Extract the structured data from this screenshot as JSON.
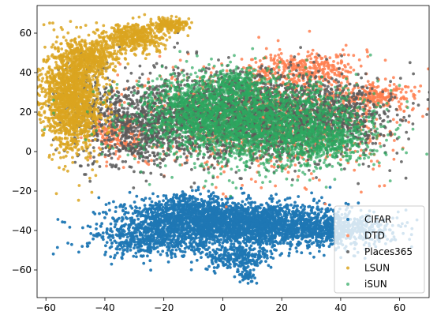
{
  "chart_data": {
    "type": "scatter",
    "xlim": [
      -63,
      70
    ],
    "ylim": [
      -74,
      74
    ],
    "xticks": [
      -60,
      -40,
      -20,
      0,
      20,
      40,
      60
    ],
    "yticks": [
      -60,
      -40,
      -20,
      0,
      20,
      40,
      60
    ],
    "xtick_labels": [
      "−60",
      "−40",
      "−20",
      "0",
      "20",
      "40",
      "60"
    ],
    "ytick_labels": [
      "−60",
      "−40",
      "−20",
      "0",
      "20",
      "40",
      "60"
    ],
    "grid": false,
    "legend_position": "lower-right",
    "series": [
      {
        "name": "CIFAR",
        "color": "#1f77b4",
        "alpha": 0.95,
        "clusters": [
          {
            "cx": 5,
            "cy": -37,
            "sx": 19,
            "sy": 5.5,
            "n": 2600
          },
          {
            "cx": -12,
            "cy": -30,
            "sx": 10,
            "sy": 4,
            "n": 500
          },
          {
            "cx": 38,
            "cy": -40,
            "sx": 10,
            "sy": 4,
            "n": 500
          },
          {
            "cx": -25,
            "cy": -46,
            "sx": 9,
            "sy": 4,
            "n": 350
          },
          {
            "cx": 5,
            "cy": -54,
            "sx": 6,
            "sy": 3,
            "n": 250
          },
          {
            "cx": 8,
            "cy": -63,
            "sx": 1.5,
            "sy": 1.5,
            "n": 40
          }
        ]
      },
      {
        "name": "DTD",
        "color": "#ff7f50",
        "alpha": 0.85,
        "clusters": [
          {
            "cx": 15,
            "cy": 18,
            "sx": 20,
            "sy": 13,
            "n": 1300
          },
          {
            "cx": 52,
            "cy": 28,
            "sx": 7,
            "sy": 3,
            "n": 200
          },
          {
            "cx": 28,
            "cy": 42,
            "sx": 9,
            "sy": 4,
            "n": 300
          },
          {
            "cx": -35,
            "cy": 8,
            "sx": 5,
            "sy": 6,
            "n": 200
          }
        ]
      },
      {
        "name": "Places365",
        "color": "#5a5a5a",
        "alpha": 0.85,
        "clusters": [
          {
            "cx": 8,
            "cy": 18,
            "sx": 20,
            "sy": 11,
            "n": 2200
          },
          {
            "cx": -28,
            "cy": 12,
            "sx": 7,
            "sy": 10,
            "n": 500
          },
          {
            "cx": -45,
            "cy": 22,
            "sx": 5,
            "sy": 12,
            "n": 250
          },
          {
            "cx": 40,
            "cy": 18,
            "sx": 9,
            "sy": 8,
            "n": 350
          }
        ]
      },
      {
        "name": "LSUN",
        "color": "#daa520",
        "alpha": 0.85,
        "clusters": [
          {
            "cx": -51,
            "cy": 27,
            "sx": 5,
            "sy": 13,
            "n": 1600
          },
          {
            "cx": -45,
            "cy": 48,
            "sx": 5,
            "sy": 4,
            "n": 400
          },
          {
            "cx": -30,
            "cy": 58,
            "sx": 5,
            "sy": 3.5,
            "n": 450
          },
          {
            "cx": -18,
            "cy": 64,
            "sx": 3,
            "sy": 2,
            "n": 180
          }
        ]
      },
      {
        "name": "iSUN",
        "color": "#2ca860",
        "alpha": 0.7,
        "clusters": [
          {
            "cx": 10,
            "cy": 15,
            "sx": 19,
            "sy": 11,
            "n": 2400
          },
          {
            "cx": -10,
            "cy": 22,
            "sx": 8,
            "sy": 7,
            "n": 400
          },
          {
            "cx": 35,
            "cy": 5,
            "sx": 8,
            "sy": 6,
            "n": 400
          },
          {
            "cx": 5,
            "cy": 35,
            "sx": 6,
            "sy": 4,
            "n": 200
          }
        ]
      }
    ]
  }
}
